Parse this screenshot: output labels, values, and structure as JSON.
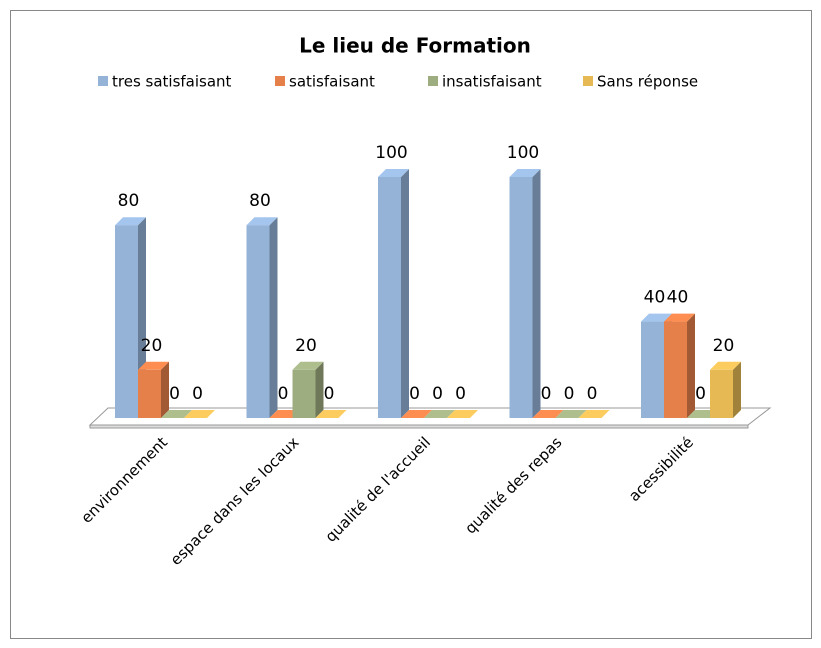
{
  "chart_data": {
    "type": "bar3d",
    "title": "Le lieu de Formation",
    "categories": [
      "environnement",
      "espace dans les locaux",
      "qualité de l'accueil",
      "qualité des repas",
      "acessibilité"
    ],
    "series": [
      {
        "name": "tres satisfaisant",
        "color": "#95b3d7",
        "values": [
          80,
          80,
          100,
          100,
          40
        ]
      },
      {
        "name": "satisfaisant",
        "color": "#e6804a",
        "values": [
          20,
          0,
          0,
          0,
          40
        ]
      },
      {
        "name": "insatisfaisant",
        "color": "#9ead80",
        "values": [
          0,
          20,
          0,
          0,
          0
        ]
      },
      {
        "name": "Sans réponse",
        "color": "#e6b955",
        "values": [
          0,
          0,
          0,
          0,
          20
        ]
      }
    ],
    "legend": "top"
  }
}
